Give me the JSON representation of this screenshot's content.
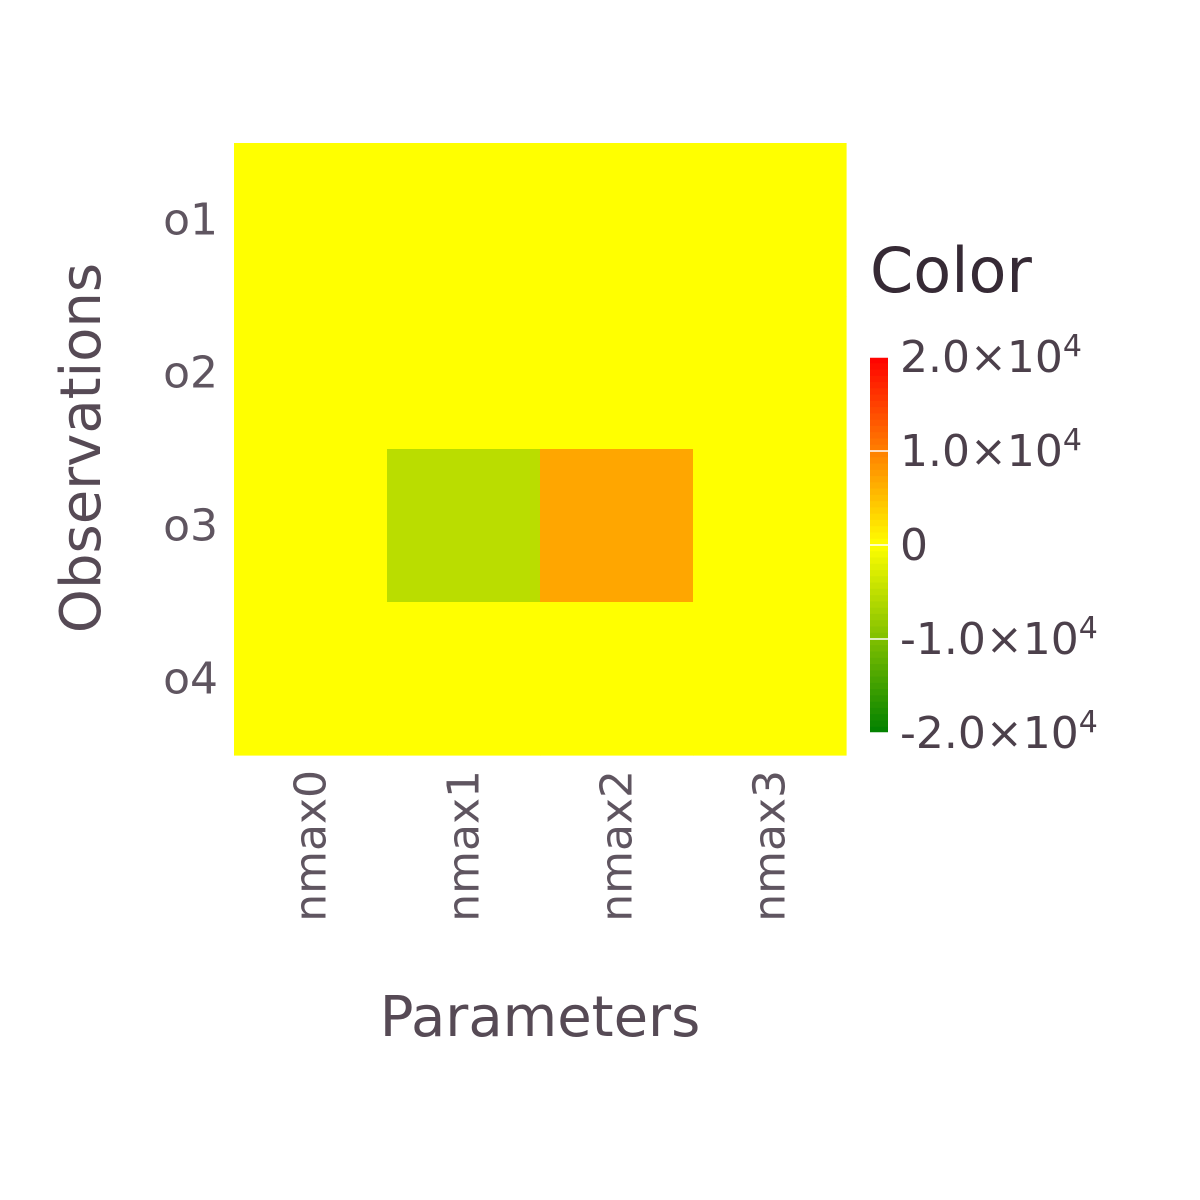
{
  "chart_data": {
    "type": "heatmap",
    "x_categories": [
      "nmax0",
      "nmax1",
      "nmax2",
      "nmax3"
    ],
    "y_categories": [
      "o1",
      "o2",
      "o3",
      "o4"
    ],
    "values": [
      [
        0,
        0,
        0,
        0
      ],
      [
        0,
        0,
        0,
        0
      ],
      [
        0,
        -5400,
        7000,
        0
      ],
      [
        0,
        0,
        0,
        0
      ]
    ],
    "xlabel": "Parameters",
    "ylabel": "Observations",
    "legend": {
      "title": "Color",
      "placement": "right",
      "range": [
        -20000,
        20000
      ],
      "ticks": [
        {
          "value": 20000,
          "mantissa": "2.0",
          "exponent": "4"
        },
        {
          "value": 10000,
          "mantissa": "1.0",
          "exponent": "4"
        },
        {
          "value": 0,
          "mantissa": "0",
          "exponent": ""
        },
        {
          "value": -10000,
          "mantissa": "-1.0",
          "exponent": "4"
        },
        {
          "value": -20000,
          "mantissa": "-2.0",
          "exponent": "4"
        }
      ]
    },
    "colorscale": [
      {
        "value": -20000,
        "color": "#008000"
      },
      {
        "value": 0,
        "color": "#ffff00"
      },
      {
        "value": 20000,
        "color": "#ff0000"
      }
    ]
  }
}
